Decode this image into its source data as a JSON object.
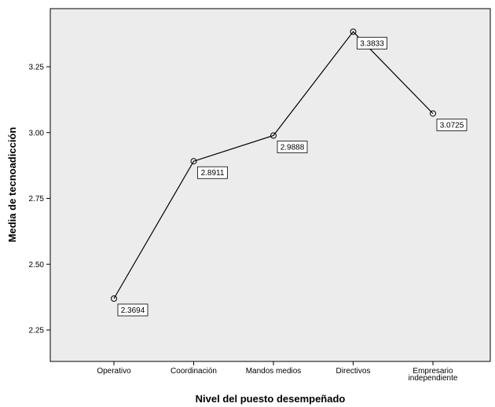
{
  "chart_data": {
    "type": "line",
    "xlabel": "Nivel del puesto desempeñado",
    "ylabel": "Media de tecnoadicción",
    "categories": [
      [
        "Operativo"
      ],
      [
        "Coordinación"
      ],
      [
        "Mandos medios"
      ],
      [
        "Directivos"
      ],
      [
        "Empresario",
        "independiente"
      ]
    ],
    "values": [
      2.3694,
      2.8911,
      2.9888,
      3.3833,
      3.0725
    ],
    "data_labels": [
      "2.3694",
      "2.8911",
      "2.9888",
      "3.3833",
      "3.0725"
    ],
    "yticks": [
      "2.25",
      "2.50",
      "2.75",
      "3.00",
      "3.25"
    ],
    "ytick_values": [
      2.25,
      2.5,
      2.75,
      3.0,
      3.25
    ],
    "ylim": [
      2.12,
      3.44
    ],
    "grid": false,
    "colors": {
      "plot_background": "#ececec",
      "line": "#000000"
    }
  }
}
